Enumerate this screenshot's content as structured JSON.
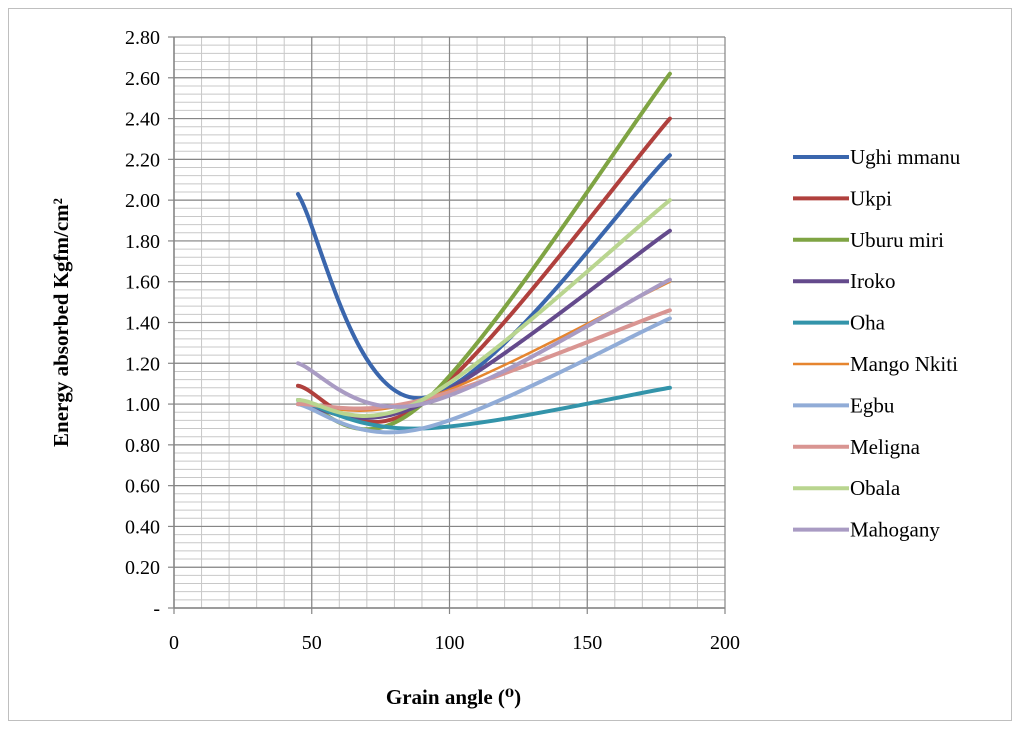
{
  "chart_data": {
    "type": "line",
    "xlabel": "Grain angle (⁰)",
    "ylabel": "Energy absorbed Kgfm/cm²",
    "xlim": [
      0,
      200
    ],
    "ylim": [
      0,
      2.8
    ],
    "x_ticks": [
      0,
      50,
      100,
      150,
      200
    ],
    "x_tick_labels": [
      "0",
      "50",
      "100",
      "150",
      "200"
    ],
    "y_ticks": [
      0,
      0.2,
      0.4,
      0.6,
      0.8,
      1.0,
      1.2,
      1.4,
      1.6,
      1.8,
      2.0,
      2.2,
      2.4,
      2.6,
      2.8
    ],
    "y_tick_labels": [
      "-",
      "0.20",
      "0.40",
      "0.60",
      "0.80",
      "1.00",
      "1.20",
      "1.40",
      "1.60",
      "1.80",
      "2.00",
      "2.20",
      "2.40",
      "2.60",
      "2.80"
    ],
    "grid": true,
    "legend_position": "right",
    "x": [
      45,
      90,
      180
    ],
    "series": [
      {
        "name": "Ughi mmanu",
        "color": "#3a66ad",
        "values": [
          2.03,
          1.03,
          2.22
        ]
      },
      {
        "name": "Ukpi",
        "color": "#b0403d",
        "values": [
          1.09,
          1.0,
          2.4
        ]
      },
      {
        "name": "Uburu miri",
        "color": "#7fa443",
        "values": [
          1.02,
          1.0,
          2.62
        ]
      },
      {
        "name": "Iroko",
        "color": "#644a8c",
        "values": [
          1.0,
          1.0,
          1.85
        ]
      },
      {
        "name": "Oha",
        "color": "#3394aa",
        "values": [
          1.02,
          0.88,
          1.08
        ]
      },
      {
        "name": "Mango Nkiti",
        "color": "#e6852f",
        "values": [
          1.0,
          1.02,
          1.6
        ]
      },
      {
        "name": "Egbu",
        "color": "#91acd7",
        "values": [
          1.0,
          0.88,
          1.42
        ]
      },
      {
        "name": "Meligna",
        "color": "#d99592",
        "values": [
          1.0,
          1.02,
          1.46
        ]
      },
      {
        "name": "Obala",
        "color": "#b9d58f",
        "values": [
          1.02,
          1.02,
          2.0
        ]
      },
      {
        "name": "Mahogany",
        "color": "#a99bc3",
        "values": [
          1.2,
          1.0,
          1.61
        ]
      }
    ]
  }
}
